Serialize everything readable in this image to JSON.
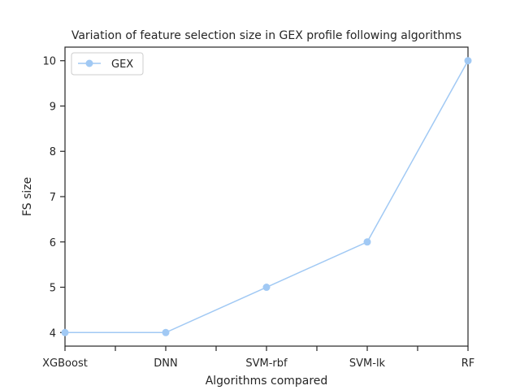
{
  "chart_data": {
    "type": "line",
    "title": "Variation of feature selection size in GEX profile following algorithms",
    "xlabel": "Algorithms compared",
    "ylabel": "FS size",
    "categories": [
      "XGBoost",
      "DNN",
      "SVM-rbf",
      "SVM-lk",
      "RF"
    ],
    "series": [
      {
        "name": "GEX",
        "values": [
          4,
          4,
          5,
          6,
          10
        ],
        "color": "#a1c9f4"
      }
    ],
    "ylim": [
      3.7,
      10.3
    ],
    "yticks": [
      4,
      5,
      6,
      7,
      8,
      9,
      10
    ],
    "grid": false,
    "legend": "top-left"
  }
}
